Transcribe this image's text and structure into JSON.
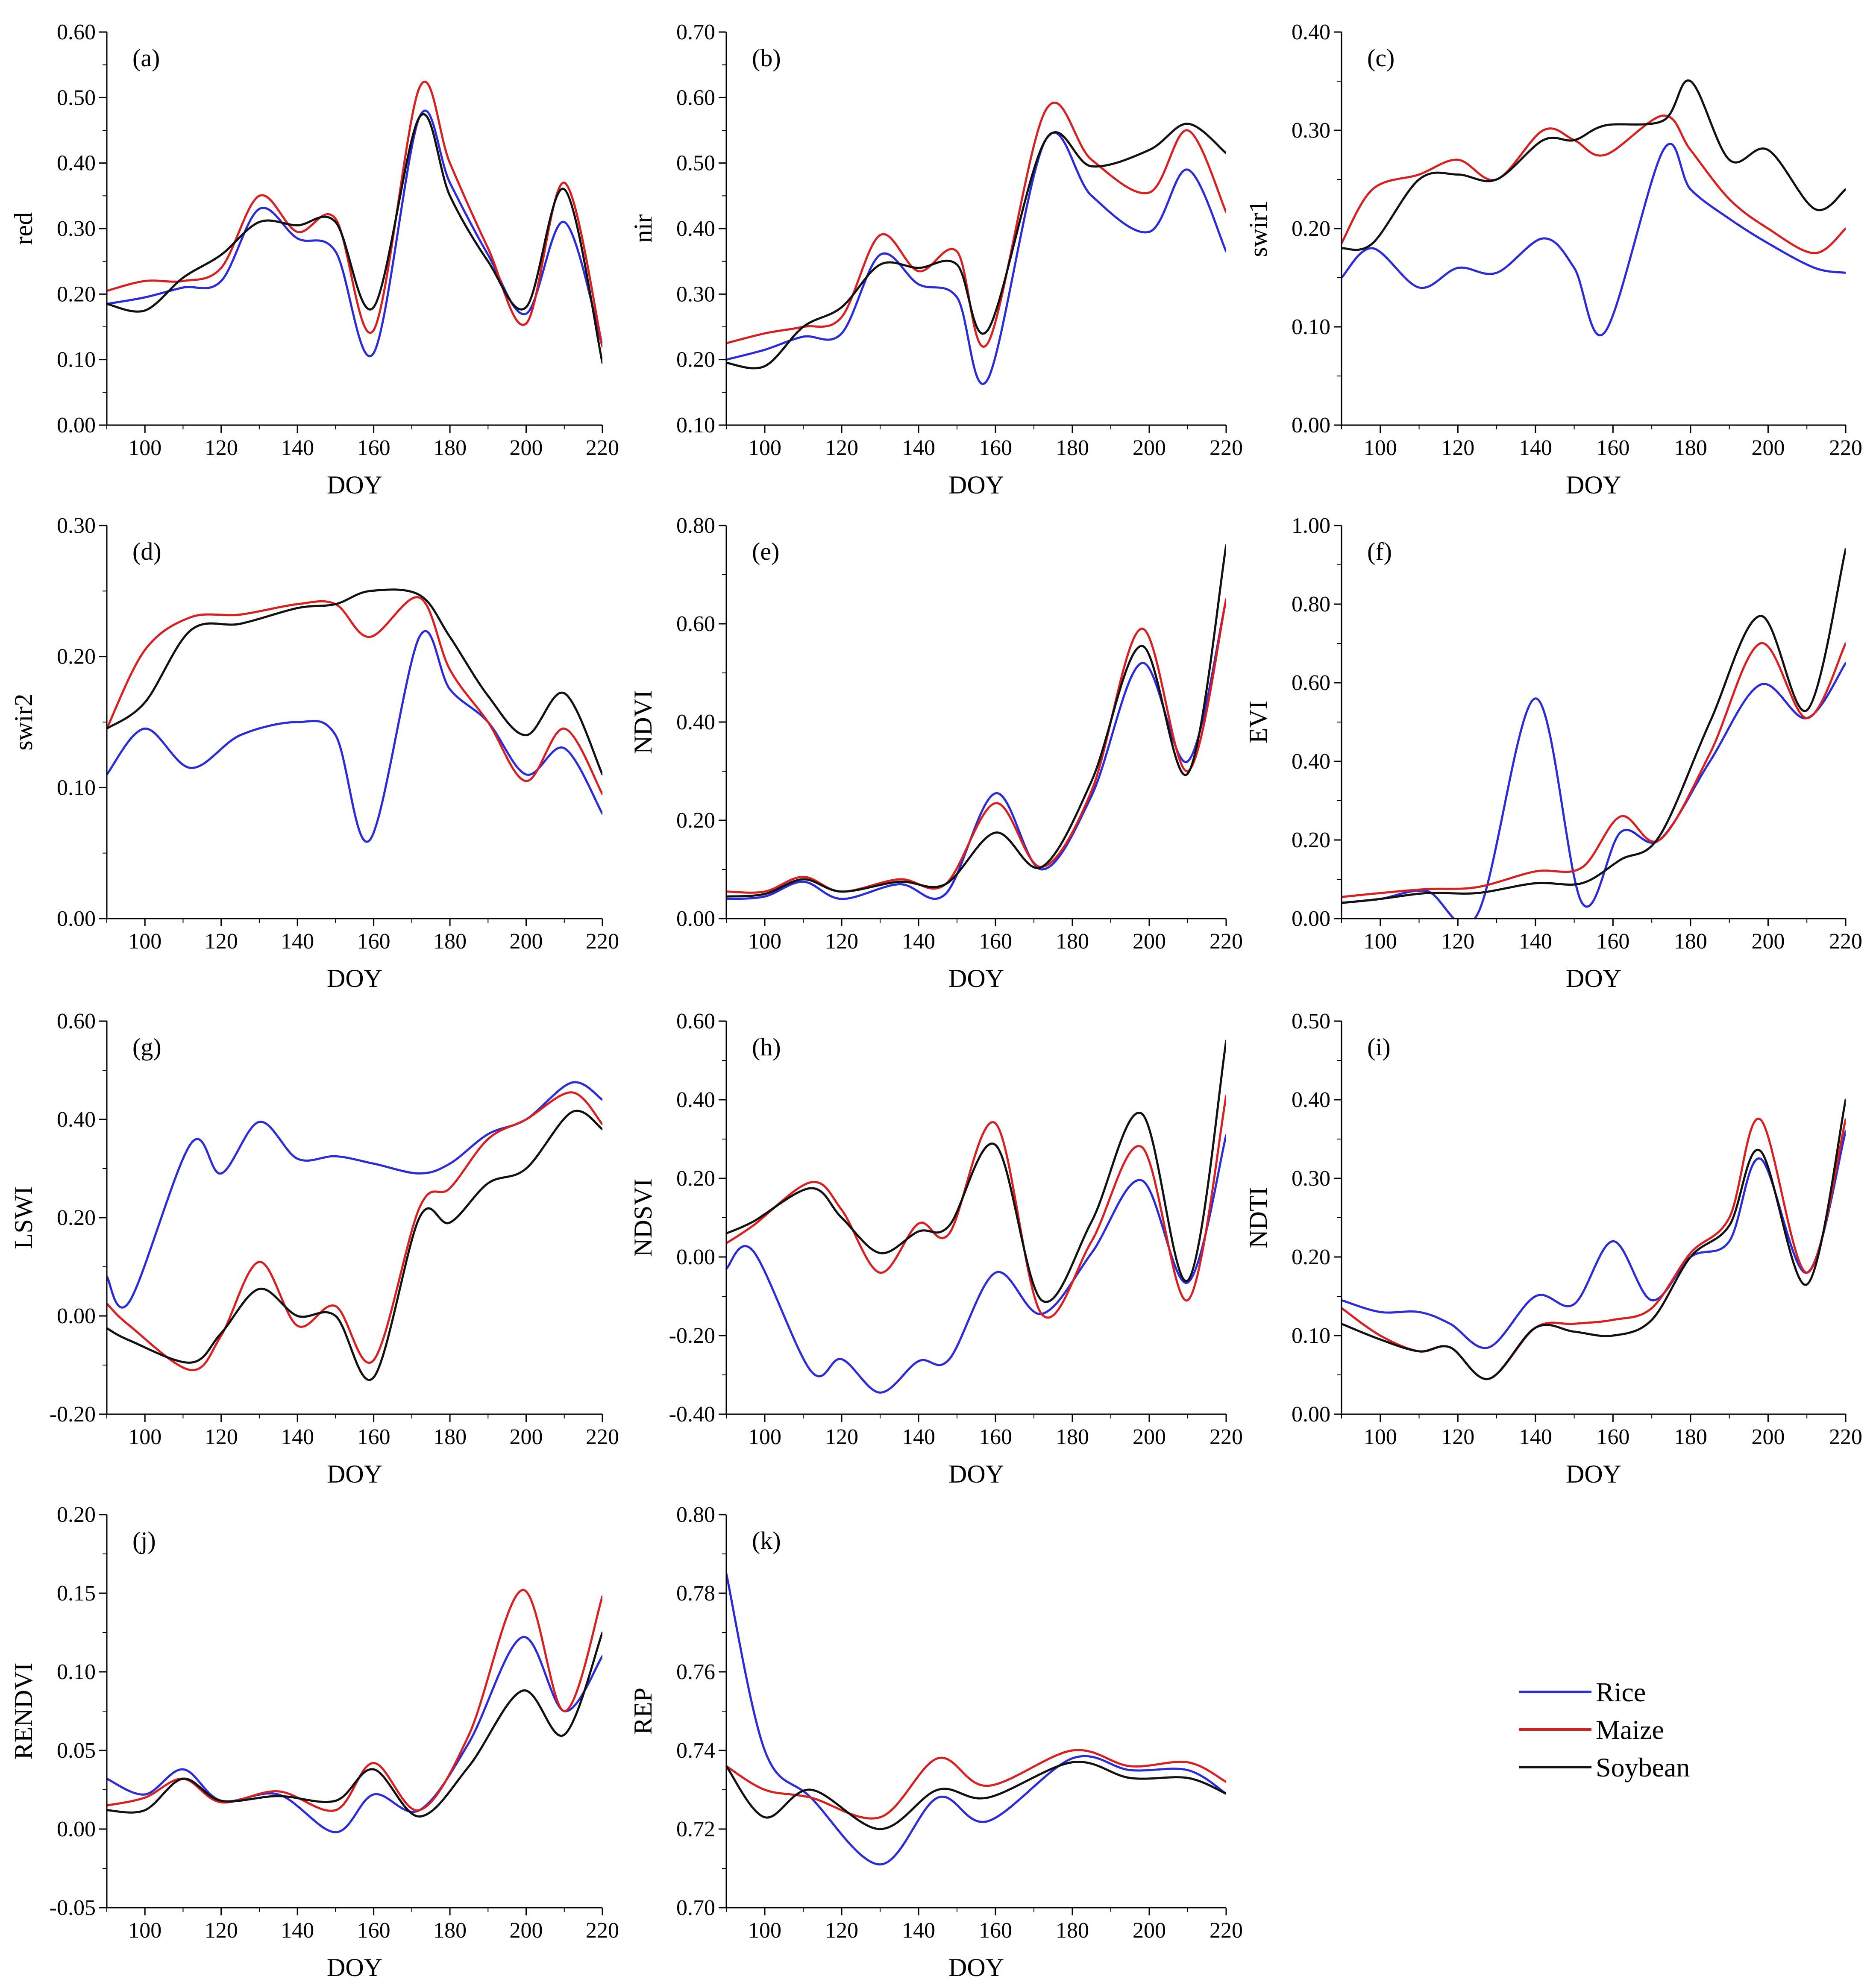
{
  "legend": {
    "entries": [
      {
        "name": "Rice",
        "color": "#2b2bd9"
      },
      {
        "name": "Maize",
        "color": "#d92020"
      },
      {
        "name": "Soybean",
        "color": "#111111"
      }
    ]
  },
  "chart_data": [
    {
      "panel": "(a)",
      "type": "line",
      "xlabel": "DOY",
      "ylabel": "red",
      "xlim": [
        90,
        220
      ],
      "ylim": [
        0.0,
        0.6
      ],
      "xticks": [
        "100",
        "120",
        "140",
        "160",
        "180",
        "200",
        "220"
      ],
      "yticks": [
        "0.00",
        "0.10",
        "0.20",
        "0.30",
        "0.40",
        "0.50",
        "0.60"
      ],
      "x": [
        90,
        100,
        110,
        120,
        130,
        140,
        150,
        160,
        172,
        180,
        190,
        200,
        210,
        220
      ],
      "series": [
        {
          "name": "Rice",
          "values": [
            0.185,
            0.195,
            0.21,
            0.22,
            0.33,
            0.285,
            0.265,
            0.11,
            0.47,
            0.37,
            0.26,
            0.17,
            0.31,
            0.12
          ]
        },
        {
          "name": "Maize",
          "values": [
            0.205,
            0.22,
            0.22,
            0.24,
            0.35,
            0.295,
            0.315,
            0.145,
            0.515,
            0.4,
            0.27,
            0.155,
            0.37,
            0.12
          ]
        },
        {
          "name": "Soybean",
          "values": [
            0.185,
            0.175,
            0.225,
            0.26,
            0.31,
            0.305,
            0.31,
            0.18,
            0.47,
            0.35,
            0.25,
            0.18,
            0.36,
            0.095
          ]
        }
      ]
    },
    {
      "panel": "(b)",
      "type": "line",
      "xlabel": "DOY",
      "ylabel": "nir",
      "xlim": [
        90,
        220
      ],
      "ylim": [
        0.1,
        0.7
      ],
      "xticks": [
        "100",
        "120",
        "140",
        "160",
        "180",
        "200",
        "220"
      ],
      "yticks": [
        "0.10",
        "0.20",
        "0.30",
        "0.40",
        "0.50",
        "0.60",
        "0.70"
      ],
      "x": [
        90,
        100,
        110,
        120,
        130,
        140,
        150,
        158,
        173,
        185,
        200,
        210,
        220
      ],
      "series": [
        {
          "name": "Rice",
          "values": [
            0.2,
            0.215,
            0.235,
            0.24,
            0.36,
            0.315,
            0.295,
            0.17,
            0.535,
            0.45,
            0.395,
            0.49,
            0.365
          ]
        },
        {
          "name": "Maize",
          "values": [
            0.225,
            0.24,
            0.25,
            0.265,
            0.39,
            0.335,
            0.365,
            0.225,
            0.58,
            0.505,
            0.455,
            0.55,
            0.425
          ]
        },
        {
          "name": "Soybean",
          "values": [
            0.195,
            0.19,
            0.25,
            0.28,
            0.345,
            0.34,
            0.345,
            0.245,
            0.535,
            0.495,
            0.52,
            0.56,
            0.515
          ]
        }
      ]
    },
    {
      "panel": "(c)",
      "type": "line",
      "xlabel": "DOY",
      "ylabel": "swir1",
      "xlim": [
        90,
        220
      ],
      "ylim": [
        0.0,
        0.4
      ],
      "xticks": [
        "100",
        "120",
        "140",
        "160",
        "180",
        "200",
        "220"
      ],
      "yticks": [
        "0.00",
        "0.10",
        "0.20",
        "0.30",
        "0.40"
      ],
      "x": [
        90,
        98,
        110,
        120,
        130,
        142,
        150,
        158,
        173,
        180,
        190,
        200,
        212,
        220
      ],
      "series": [
        {
          "name": "Rice",
          "values": [
            0.15,
            0.18,
            0.14,
            0.16,
            0.155,
            0.19,
            0.16,
            0.095,
            0.28,
            0.24,
            0.21,
            0.185,
            0.16,
            0.155
          ]
        },
        {
          "name": "Maize",
          "values": [
            0.185,
            0.24,
            0.255,
            0.27,
            0.25,
            0.3,
            0.29,
            0.275,
            0.315,
            0.28,
            0.23,
            0.2,
            0.175,
            0.2
          ]
        },
        {
          "name": "Soybean",
          "values": [
            0.18,
            0.185,
            0.25,
            0.255,
            0.25,
            0.29,
            0.29,
            0.305,
            0.31,
            0.35,
            0.27,
            0.28,
            0.22,
            0.24
          ]
        }
      ]
    },
    {
      "panel": "(d)",
      "type": "line",
      "xlabel": "DOY",
      "ylabel": "swir2",
      "xlim": [
        90,
        220
      ],
      "ylim": [
        0.0,
        0.3
      ],
      "xticks": [
        "100",
        "120",
        "140",
        "160",
        "180",
        "200",
        "220"
      ],
      "yticks": [
        "0.00",
        "0.10",
        "0.20",
        "0.30"
      ],
      "x": [
        90,
        100,
        112,
        125,
        140,
        150,
        159,
        172,
        180,
        190,
        200,
        210,
        220
      ],
      "series": [
        {
          "name": "Rice",
          "values": [
            0.11,
            0.145,
            0.115,
            0.14,
            0.15,
            0.14,
            0.06,
            0.215,
            0.175,
            0.15,
            0.11,
            0.13,
            0.08
          ]
        },
        {
          "name": "Maize",
          "values": [
            0.145,
            0.205,
            0.23,
            0.232,
            0.24,
            0.24,
            0.215,
            0.245,
            0.19,
            0.15,
            0.105,
            0.145,
            0.095
          ]
        },
        {
          "name": "Soybean",
          "values": [
            0.145,
            0.165,
            0.22,
            0.225,
            0.237,
            0.24,
            0.25,
            0.247,
            0.215,
            0.17,
            0.14,
            0.172,
            0.11
          ]
        }
      ]
    },
    {
      "panel": "(e)",
      "type": "line",
      "xlabel": "DOY",
      "ylabel": "NDVI",
      "xlim": [
        90,
        220
      ],
      "ylim": [
        0.0,
        0.8
      ],
      "xticks": [
        "100",
        "120",
        "140",
        "160",
        "180",
        "200",
        "220"
      ],
      "yticks": [
        "0.00",
        "0.20",
        "0.40",
        "0.60",
        "0.80"
      ],
      "x": [
        90,
        100,
        110,
        120,
        135,
        147,
        160,
        172,
        185,
        198,
        210,
        220
      ],
      "series": [
        {
          "name": "Rice",
          "values": [
            0.04,
            0.045,
            0.075,
            0.04,
            0.07,
            0.05,
            0.255,
            0.1,
            0.25,
            0.52,
            0.32,
            0.65
          ]
        },
        {
          "name": "Maize",
          "values": [
            0.055,
            0.055,
            0.085,
            0.055,
            0.08,
            0.07,
            0.235,
            0.105,
            0.26,
            0.59,
            0.3,
            0.65
          ]
        },
        {
          "name": "Soybean",
          "values": [
            0.045,
            0.05,
            0.08,
            0.055,
            0.075,
            0.07,
            0.175,
            0.105,
            0.28,
            0.555,
            0.295,
            0.76
          ]
        }
      ]
    },
    {
      "panel": "(f)",
      "type": "line",
      "xlabel": "DOY",
      "ylabel": "EVI",
      "xlim": [
        90,
        220
      ],
      "ylim": [
        0.0,
        1.0
      ],
      "xticks": [
        "100",
        "120",
        "140",
        "160",
        "180",
        "200",
        "220"
      ],
      "yticks": [
        "0.00",
        "0.20",
        "0.40",
        "0.60",
        "0.80",
        "1.00"
      ],
      "x": [
        90,
        100,
        112,
        125,
        140,
        152,
        162,
        172,
        185,
        198,
        210,
        220
      ],
      "series": [
        {
          "name": "Rice",
          "values": [
            0.04,
            0.05,
            0.07,
            0.01,
            0.56,
            0.04,
            0.22,
            0.2,
            0.4,
            0.595,
            0.51,
            0.65
          ]
        },
        {
          "name": "Maize",
          "values": [
            0.055,
            0.065,
            0.075,
            0.08,
            0.12,
            0.13,
            0.26,
            0.2,
            0.42,
            0.7,
            0.51,
            0.7
          ]
        },
        {
          "name": "Soybean",
          "values": [
            0.04,
            0.05,
            0.065,
            0.065,
            0.09,
            0.09,
            0.15,
            0.21,
            0.5,
            0.77,
            0.53,
            0.94
          ]
        }
      ]
    },
    {
      "panel": "(g)",
      "type": "line",
      "xlabel": "DOY",
      "ylabel": "LSWI",
      "xlim": [
        90,
        220
      ],
      "ylim": [
        -0.2,
        0.6
      ],
      "xticks": [
        "100",
        "120",
        "140",
        "160",
        "180",
        "200",
        "220"
      ],
      "yticks": [
        "-0.20",
        "0.00",
        "0.20",
        "0.40",
        "0.60"
      ],
      "x": [
        90,
        96,
        112,
        120,
        130,
        140,
        150,
        160,
        172,
        180,
        190,
        200,
        212,
        220
      ],
      "series": [
        {
          "name": "Rice",
          "values": [
            0.08,
            0.03,
            0.35,
            0.29,
            0.395,
            0.32,
            0.325,
            0.31,
            0.29,
            0.31,
            0.37,
            0.4,
            0.475,
            0.44
          ]
        },
        {
          "name": "Maize",
          "values": [
            0.025,
            -0.02,
            -0.11,
            -0.04,
            0.11,
            -0.02,
            0.02,
            -0.09,
            0.22,
            0.26,
            0.36,
            0.4,
            0.455,
            0.39
          ]
        },
        {
          "name": "Soybean",
          "values": [
            -0.025,
            -0.05,
            -0.095,
            -0.035,
            0.055,
            0.0,
            0.0,
            -0.125,
            0.2,
            0.19,
            0.27,
            0.3,
            0.415,
            0.38
          ]
        }
      ]
    },
    {
      "panel": "(h)",
      "type": "line",
      "xlabel": "DOY",
      "ylabel": "NDSVI",
      "xlim": [
        90,
        220
      ],
      "ylim": [
        -0.4,
        0.6
      ],
      "xticks": [
        "100",
        "120",
        "140",
        "160",
        "180",
        "200",
        "220"
      ],
      "yticks": [
        "-0.40",
        "-0.20",
        "0.00",
        "0.20",
        "0.40",
        "0.60"
      ],
      "x": [
        90,
        97,
        112,
        120,
        130,
        140,
        148,
        160,
        172,
        185,
        198,
        210,
        220
      ],
      "series": [
        {
          "name": "Rice",
          "values": [
            -0.03,
            0.015,
            -0.29,
            -0.26,
            -0.345,
            -0.265,
            -0.26,
            -0.04,
            -0.145,
            0.01,
            0.195,
            -0.065,
            0.31
          ]
        },
        {
          "name": "Maize",
          "values": [
            0.035,
            0.08,
            0.19,
            0.12,
            -0.04,
            0.085,
            0.06,
            0.34,
            -0.145,
            0.04,
            0.28,
            -0.11,
            0.41
          ]
        },
        {
          "name": "Soybean",
          "values": [
            0.06,
            0.09,
            0.175,
            0.1,
            0.01,
            0.065,
            0.08,
            0.285,
            -0.11,
            0.09,
            0.365,
            -0.06,
            0.55
          ]
        }
      ]
    },
    {
      "panel": "(i)",
      "type": "line",
      "xlabel": "DOY",
      "ylabel": "NDTI",
      "xlim": [
        90,
        220
      ],
      "ylim": [
        0.0,
        0.5
      ],
      "xticks": [
        "100",
        "120",
        "140",
        "160",
        "180",
        "200",
        "220"
      ],
      "yticks": [
        "0.00",
        "0.10",
        "0.20",
        "0.30",
        "0.40",
        "0.50"
      ],
      "x": [
        90,
        100,
        110,
        118,
        128,
        140,
        150,
        160,
        170,
        180,
        190,
        198,
        210,
        220
      ],
      "series": [
        {
          "name": "Rice",
          "values": [
            0.145,
            0.13,
            0.13,
            0.115,
            0.085,
            0.15,
            0.14,
            0.22,
            0.145,
            0.2,
            0.22,
            0.325,
            0.18,
            0.36
          ]
        },
        {
          "name": "Maize",
          "values": [
            0.135,
            0.1,
            0.08,
            0.085,
            0.045,
            0.11,
            0.115,
            0.12,
            0.135,
            0.205,
            0.25,
            0.375,
            0.18,
            0.375
          ]
        },
        {
          "name": "Soybean",
          "values": [
            0.115,
            0.095,
            0.08,
            0.085,
            0.045,
            0.11,
            0.105,
            0.1,
            0.12,
            0.2,
            0.24,
            0.335,
            0.165,
            0.4
          ]
        }
      ]
    },
    {
      "panel": "(j)",
      "type": "line",
      "xlabel": "DOY",
      "ylabel": "RENDVI",
      "xlim": [
        90,
        220
      ],
      "ylim": [
        -0.05,
        0.2
      ],
      "xticks": [
        "100",
        "120",
        "140",
        "160",
        "180",
        "200",
        "220"
      ],
      "yticks": [
        "-0.05",
        "0.00",
        "0.05",
        "0.10",
        "0.15",
        "0.20"
      ],
      "x": [
        90,
        100,
        110,
        120,
        135,
        150,
        160,
        172,
        185,
        199,
        210,
        220
      ],
      "series": [
        {
          "name": "Rice",
          "values": [
            0.032,
            0.022,
            0.038,
            0.018,
            0.022,
            -0.002,
            0.022,
            0.012,
            0.055,
            0.122,
            0.075,
            0.11
          ]
        },
        {
          "name": "Maize",
          "values": [
            0.015,
            0.02,
            0.032,
            0.017,
            0.024,
            0.012,
            0.042,
            0.012,
            0.06,
            0.152,
            0.075,
            0.148
          ]
        },
        {
          "name": "Soybean",
          "values": [
            0.012,
            0.012,
            0.032,
            0.018,
            0.021,
            0.018,
            0.038,
            0.008,
            0.04,
            0.088,
            0.06,
            0.125
          ]
        }
      ]
    },
    {
      "panel": "(k)",
      "type": "line",
      "xlabel": "DOY",
      "ylabel": "REP",
      "xlim": [
        90,
        220
      ],
      "ylim": [
        0.7,
        0.8
      ],
      "xticks": [
        "100",
        "120",
        "140",
        "160",
        "180",
        "200",
        "220"
      ],
      "yticks": [
        "0.70",
        "0.72",
        "0.74",
        "0.76",
        "0.78",
        "0.80"
      ],
      "x": [
        90,
        100,
        112,
        130,
        145,
        158,
        180,
        195,
        210,
        220
      ],
      "series": [
        {
          "name": "Rice",
          "values": [
            0.785,
            0.74,
            0.728,
            0.711,
            0.728,
            0.722,
            0.738,
            0.735,
            0.735,
            0.729
          ]
        },
        {
          "name": "Maize",
          "values": [
            0.736,
            0.73,
            0.728,
            0.723,
            0.738,
            0.731,
            0.74,
            0.736,
            0.737,
            0.732
          ]
        },
        {
          "name": "Soybean",
          "values": [
            0.736,
            0.723,
            0.73,
            0.72,
            0.73,
            0.728,
            0.737,
            0.733,
            0.733,
            0.729
          ]
        }
      ]
    }
  ]
}
